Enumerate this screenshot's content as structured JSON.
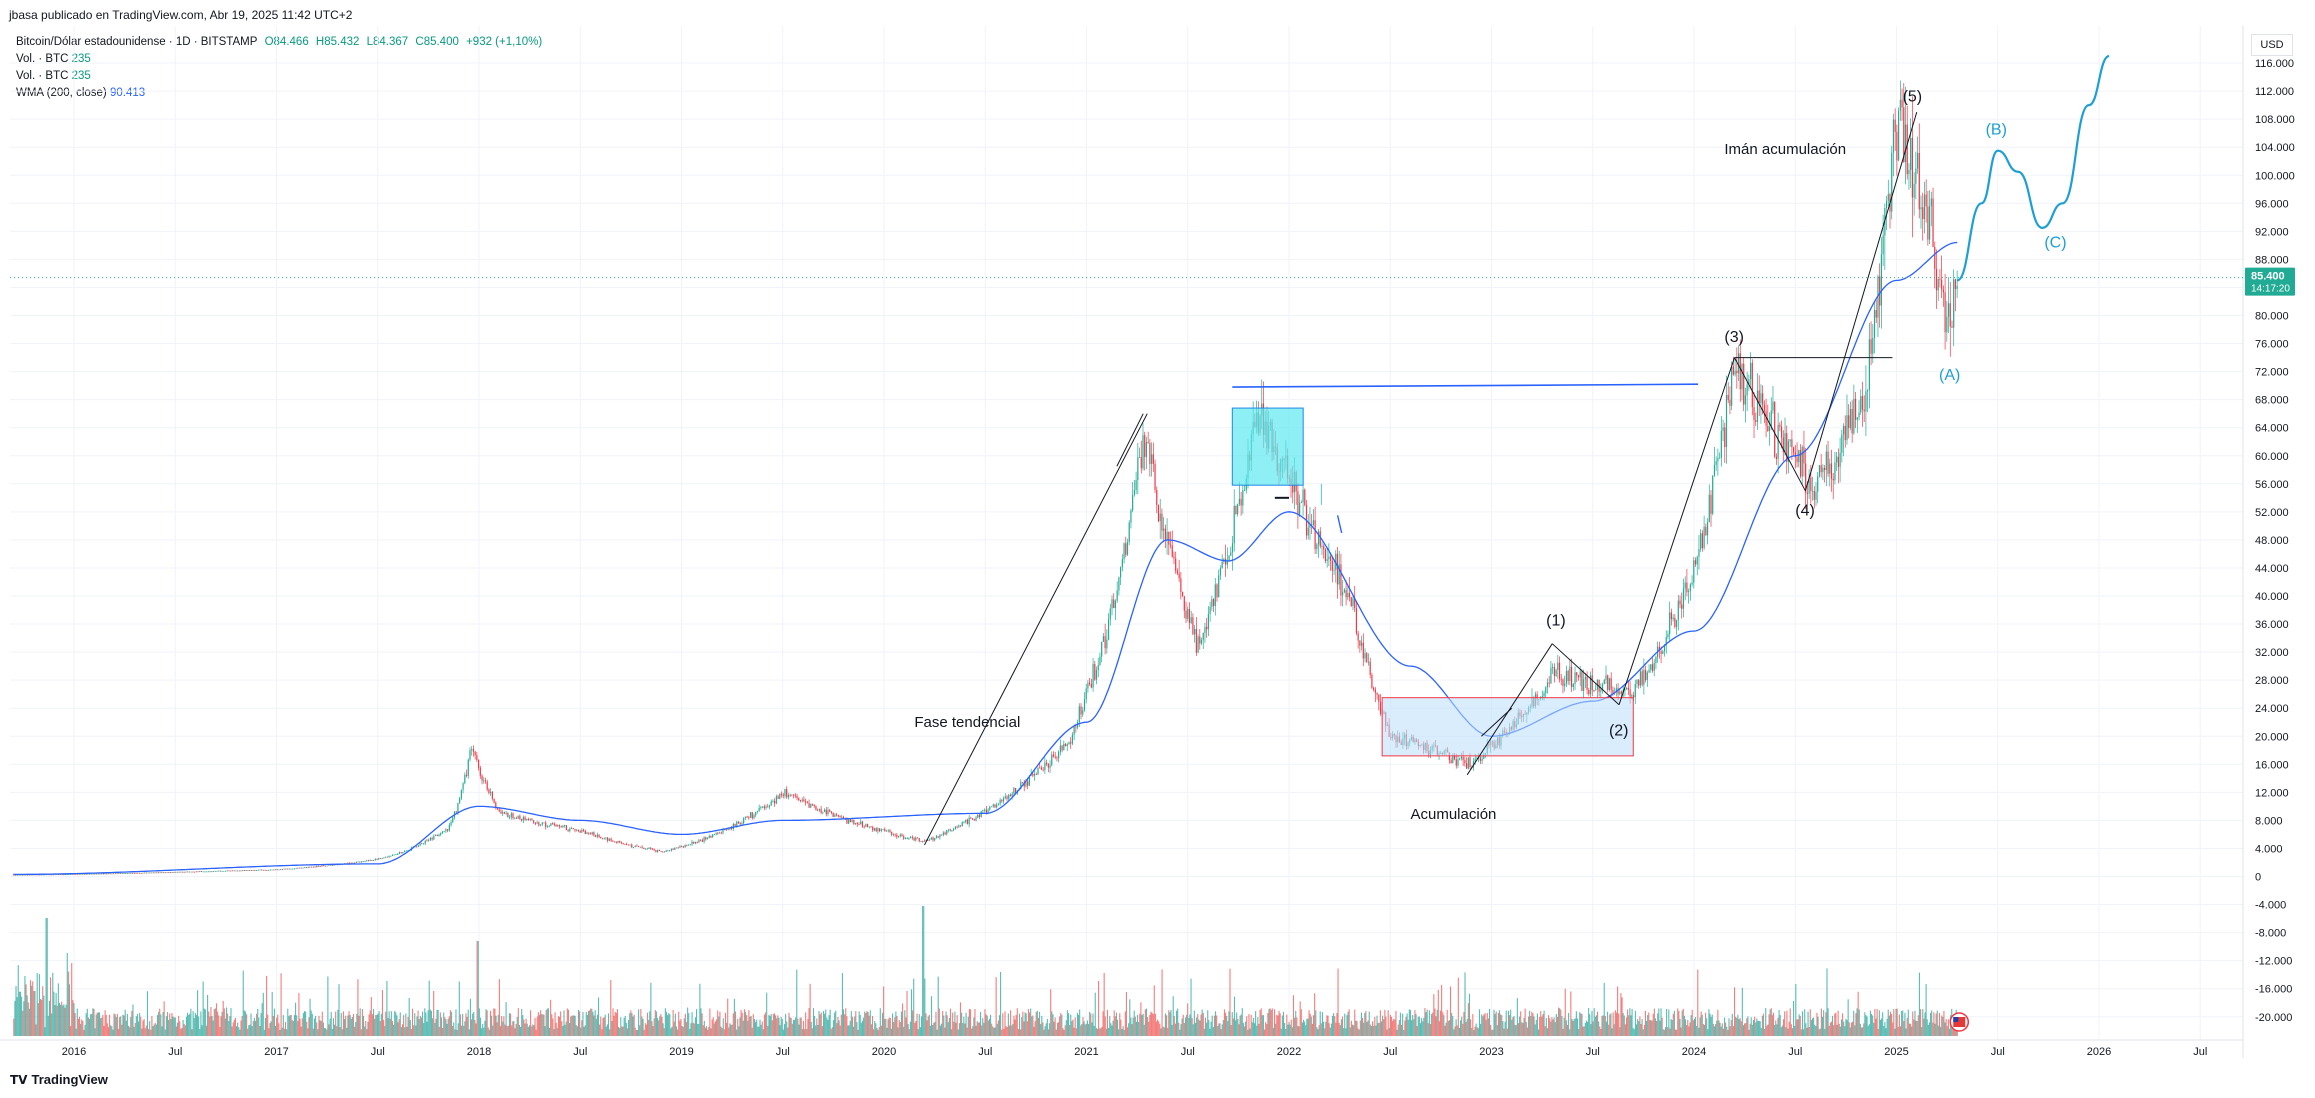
{
  "publisher": "jbasa publicado en TradingView.com, Abr 19, 2025 11:42 UTC+2",
  "legend": {
    "symbol": "Bitcoin/Dólar estadounidense · 1D · BITSTAMP",
    "open": "O84.466",
    "high": "H85.432",
    "low": "L84.367",
    "close": "C85.400",
    "change": "+932 (+1,10%)",
    "vol1_label": "Vol. · BTC",
    "vol1_value": "235",
    "vol2_label": "Vol. · BTC",
    "vol2_value": "235",
    "wma_label": "WMA (200, close)",
    "wma_value": "90.413"
  },
  "footer": {
    "brand": "TradingView",
    "logo_icon": "tradingview-logo-icon"
  },
  "currency": "USD",
  "price_tag": {
    "value": "85.400",
    "timer": "14:17:20",
    "color": "#22ab94"
  },
  "colors": {
    "up": "#22ab94",
    "down": "#f23645",
    "wma": "#2962ff",
    "forecast": "#1e9fd4",
    "annot": "#131722",
    "accum_fill": "#bbdefb",
    "accum_border": "#f23645",
    "cyan_box": "#5ee8f0",
    "resistance": "#2962ff"
  },
  "chart_data": {
    "type": "candlestick",
    "title": "Bitcoin/Dólar estadounidense · 1D · BITSTAMP",
    "ylim": [
      -20000,
      120000
    ],
    "y_ticks": [
      "116.000",
      "112.000",
      "108.000",
      "104.000",
      "100.000",
      "96.000",
      "92.000",
      "88.000",
      "84.000",
      "80.000",
      "76.000",
      "72.000",
      "68.000",
      "64.000",
      "60.000",
      "56.000",
      "52.000",
      "48.000",
      "44.000",
      "40.000",
      "36.000",
      "32.000",
      "28.000",
      "24.000",
      "20.000",
      "16.000",
      "12.000",
      "8.000",
      "4.000",
      "0",
      "-4.000",
      "-8.000",
      "-12.000",
      "-16.000",
      "-20.000"
    ],
    "x_ticks": [
      "2016",
      "Jul",
      "2017",
      "Jul",
      "2018",
      "Jul",
      "2019",
      "Jul",
      "2020",
      "Jul",
      "2021",
      "Jul",
      "2022",
      "Jul",
      "2023",
      "Jul",
      "2024",
      "Jul",
      "2025",
      "Jul",
      "2026",
      "Jul"
    ],
    "price_path": [
      {
        "t": 2015.7,
        "p": 240
      },
      {
        "t": 2016.5,
        "p": 650
      },
      {
        "t": 2017.0,
        "p": 1000
      },
      {
        "t": 2017.5,
        "p": 2500
      },
      {
        "t": 2017.85,
        "p": 7000
      },
      {
        "t": 2017.96,
        "p": 19000
      },
      {
        "t": 2018.1,
        "p": 9000
      },
      {
        "t": 2018.5,
        "p": 6500
      },
      {
        "t": 2018.9,
        "p": 3500
      },
      {
        "t": 2019.5,
        "p": 12000
      },
      {
        "t": 2019.9,
        "p": 7200
      },
      {
        "t": 2020.2,
        "p": 5000
      },
      {
        "t": 2020.5,
        "p": 9500
      },
      {
        "t": 2020.9,
        "p": 19000
      },
      {
        "t": 2021.28,
        "p": 63000
      },
      {
        "t": 2021.55,
        "p": 33000
      },
      {
        "t": 2021.85,
        "p": 67000
      },
      {
        "t": 2022.3,
        "p": 40000
      },
      {
        "t": 2022.5,
        "p": 20000
      },
      {
        "t": 2022.9,
        "p": 16000
      },
      {
        "t": 2023.3,
        "p": 29000
      },
      {
        "t": 2023.7,
        "p": 26000
      },
      {
        "t": 2024.0,
        "p": 44000
      },
      {
        "t": 2024.2,
        "p": 73000
      },
      {
        "t": 2024.6,
        "p": 55000
      },
      {
        "t": 2024.85,
        "p": 70000
      },
      {
        "t": 2025.0,
        "p": 108000
      },
      {
        "t": 2025.15,
        "p": 96000
      },
      {
        "t": 2025.25,
        "p": 78000
      },
      {
        "t": 2025.3,
        "p": 85400
      }
    ],
    "wma_path": [
      {
        "t": 2015.7,
        "p": 300
      },
      {
        "t": 2017.5,
        "p": 1800
      },
      {
        "t": 2018.0,
        "p": 10000
      },
      {
        "t": 2018.5,
        "p": 8000
      },
      {
        "t": 2019.0,
        "p": 6000
      },
      {
        "t": 2019.5,
        "p": 8000
      },
      {
        "t": 2020.5,
        "p": 9000
      },
      {
        "t": 2021.0,
        "p": 22000
      },
      {
        "t": 2021.4,
        "p": 48000
      },
      {
        "t": 2021.7,
        "p": 45000
      },
      {
        "t": 2022.0,
        "p": 52000
      },
      {
        "t": 2022.6,
        "p": 30000
      },
      {
        "t": 2023.0,
        "p": 20000
      },
      {
        "t": 2023.5,
        "p": 25000
      },
      {
        "t": 2024.0,
        "p": 35000
      },
      {
        "t": 2024.5,
        "p": 60000
      },
      {
        "t": 2025.0,
        "p": 85000
      },
      {
        "t": 2025.3,
        "p": 90413
      }
    ],
    "last_price": 85400,
    "annotations": [
      {
        "text": "Fase tendencial"
      },
      {
        "text": "Acumulación"
      },
      {
        "text": "Imán acumulación"
      },
      {
        "text": "(1)"
      },
      {
        "text": "(2)"
      },
      {
        "text": "(3)"
      },
      {
        "text": "(4)"
      },
      {
        "text": "(5)"
      },
      {
        "text": "(A)"
      },
      {
        "text": "(B)"
      },
      {
        "text": "(C)"
      }
    ]
  }
}
